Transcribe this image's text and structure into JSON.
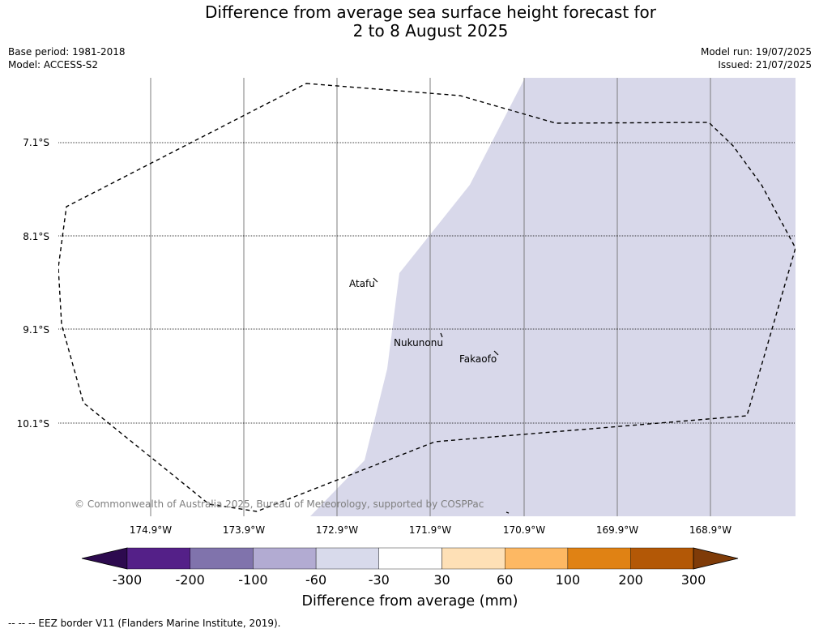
{
  "title": {
    "line1": "Difference from average sea surface height forecast for",
    "line2": "2 to 8 August 2025"
  },
  "meta": {
    "base_period": "Base period: 1981-2018",
    "model": "Model: ACCESS-S2",
    "model_run": "Model run: 19/07/2025",
    "issued": "Issued: 21/07/2025"
  },
  "map": {
    "lat_labels": [
      "7.1°S",
      "8.1°S",
      "9.1°S",
      "10.1°S"
    ],
    "lon_labels": [
      "174.9°W",
      "173.9°W",
      "172.9°W",
      "171.9°W",
      "170.9°W",
      "169.9°W",
      "168.9°W"
    ],
    "places": [
      "Atafu",
      "Nukunonu",
      "Fakaofo"
    ],
    "copyright": "© Commonwealth of Australia 2025, Bureau of Meteorology, supported by COSPPac",
    "shading_color": "#d8d8ea"
  },
  "colorbar": {
    "title": "Difference from average (mm)",
    "tick_labels": [
      "-300",
      "-200",
      "-100",
      "-60",
      "-30",
      "30",
      "60",
      "100",
      "200",
      "300"
    ],
    "colors": [
      "#2d0a4f",
      "#542088",
      "#8073ac",
      "#b2abd2",
      "#d8daeb",
      "#ffffff",
      "#fee0b6",
      "#fdb863",
      "#e08214",
      "#b35806",
      "#7f3b08"
    ]
  },
  "footnote": "--  --  -- EEZ border V11 (Flanders Marine Institute, 2019)."
}
